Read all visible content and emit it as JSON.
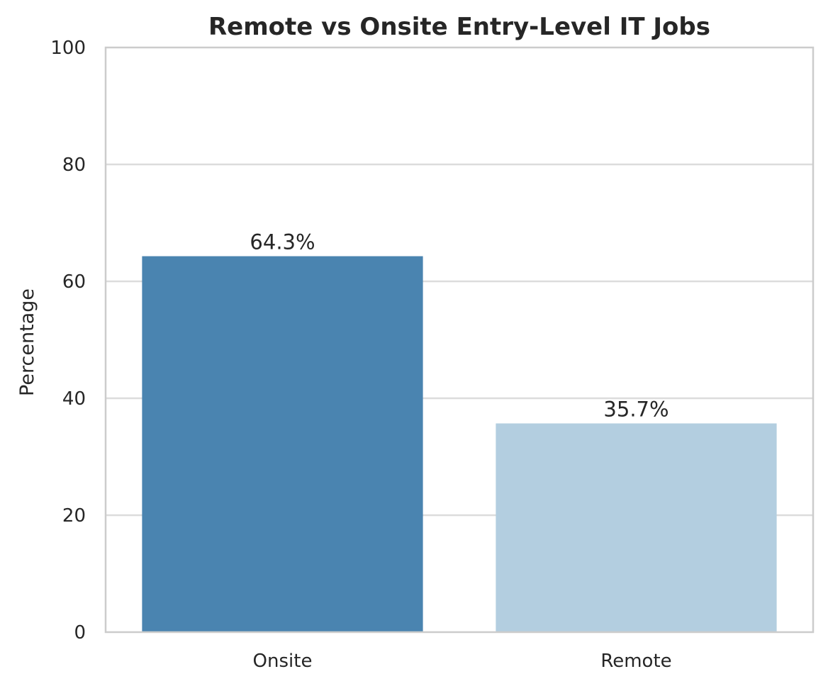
{
  "chart_data": {
    "type": "bar",
    "title": "Remote vs Onsite Entry-Level IT Jobs",
    "xlabel": "",
    "ylabel": "Percentage",
    "categories": [
      "Onsite",
      "Remote"
    ],
    "values": [
      64.3,
      35.7
    ],
    "data_labels": [
      "64.3%",
      "35.7%"
    ],
    "bar_colors": [
      "#4a84b0",
      "#b3cee0"
    ],
    "ylim": [
      0,
      100
    ],
    "yticks": [
      0,
      20,
      40,
      60,
      80,
      100
    ],
    "ytick_labels": [
      "0",
      "20",
      "40",
      "60",
      "80",
      "100"
    ],
    "grid": true,
    "grid_color": "#dcdcdc",
    "spine_color": "#cccccc",
    "text_color": "#262626"
  }
}
